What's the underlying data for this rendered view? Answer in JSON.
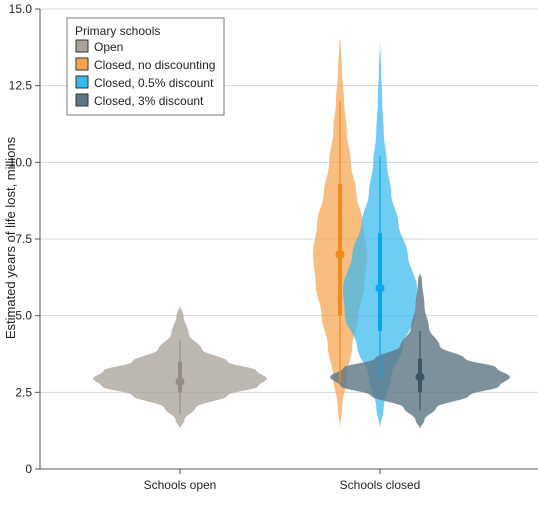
{
  "chart_data": {
    "type": "violin",
    "ylabel": "Estimated years of life lost, millions",
    "ylim": [
      0,
      15
    ],
    "yticks": [
      "0",
      "2.5",
      "5.0",
      "7.5",
      "10.0",
      "12.5",
      "15.0"
    ],
    "ytick_values": [
      0,
      2.5,
      5.0,
      7.5,
      10.0,
      12.5,
      15.0
    ],
    "categories": [
      "Schools open",
      "Schools closed"
    ],
    "grid": true,
    "legend": {
      "title": "Primary schools",
      "placement": "top-left",
      "entries": [
        "Open",
        "Closed, no discounting",
        "Closed, 0.5% discount",
        "Closed, 3% discount"
      ]
    },
    "colors": {
      "open": "#aaa39b",
      "no_discount": "#f7a44f",
      "half_pct": "#38b9ef",
      "three_pct": "#5c7685",
      "grid": "#d4d4d4",
      "axis": "#555555"
    },
    "series": [
      {
        "name": "Open",
        "category": "Schools open",
        "color_key": "open",
        "opacity": 0.78,
        "median": 2.85,
        "q1": 2.5,
        "q3": 3.5,
        "min": 1.8,
        "max": 4.2,
        "profile": [
          [
            1.3,
            0.0
          ],
          [
            1.6,
            0.05
          ],
          [
            2.0,
            0.18
          ],
          [
            2.4,
            0.55
          ],
          [
            2.7,
            0.9
          ],
          [
            2.95,
            1.0
          ],
          [
            3.2,
            0.88
          ],
          [
            3.5,
            0.55
          ],
          [
            3.9,
            0.25
          ],
          [
            4.4,
            0.1
          ],
          [
            5.0,
            0.04
          ],
          [
            5.35,
            0.0
          ]
        ]
      },
      {
        "name": "Closed, no discounting",
        "category": "Schools closed",
        "color_key": "no_discount",
        "opacity": 0.72,
        "median": 7.0,
        "q1": 5.0,
        "q3": 9.3,
        "min": 2.8,
        "max": 12.0,
        "profile": [
          [
            1.3,
            0.0
          ],
          [
            2.0,
            0.08
          ],
          [
            3.0,
            0.25
          ],
          [
            4.0,
            0.45
          ],
          [
            5.0,
            0.68
          ],
          [
            6.0,
            0.9
          ],
          [
            7.0,
            1.0
          ],
          [
            8.0,
            0.85
          ],
          [
            9.0,
            0.6
          ],
          [
            10.0,
            0.4
          ],
          [
            11.0,
            0.25
          ],
          [
            12.0,
            0.15
          ],
          [
            13.0,
            0.07
          ],
          [
            14.0,
            0.02
          ]
        ]
      },
      {
        "name": "Closed, 0.5% discount",
        "category": "Schools closed",
        "color_key": "half_pct",
        "opacity": 0.72,
        "median": 5.9,
        "q1": 4.5,
        "q3": 7.7,
        "min": 3.0,
        "max": 10.2,
        "profile": [
          [
            1.3,
            0.0
          ],
          [
            2.0,
            0.1
          ],
          [
            3.0,
            0.3
          ],
          [
            4.0,
            0.62
          ],
          [
            5.0,
            0.95
          ],
          [
            5.9,
            1.0
          ],
          [
            7.0,
            0.75
          ],
          [
            8.0,
            0.5
          ],
          [
            9.0,
            0.3
          ],
          [
            10.0,
            0.18
          ],
          [
            11.0,
            0.1
          ],
          [
            12.0,
            0.06
          ],
          [
            13.0,
            0.03
          ],
          [
            14.0,
            0.0
          ]
        ]
      },
      {
        "name": "Closed, 3% discount",
        "category": "Schools closed",
        "color_key": "three_pct",
        "opacity": 0.8,
        "median": 3.0,
        "q1": 2.5,
        "q3": 3.6,
        "min": 1.9,
        "max": 4.5,
        "profile": [
          [
            1.3,
            0.0
          ],
          [
            1.6,
            0.05
          ],
          [
            2.0,
            0.18
          ],
          [
            2.4,
            0.55
          ],
          [
            2.7,
            0.88
          ],
          [
            3.0,
            1.0
          ],
          [
            3.3,
            0.85
          ],
          [
            3.6,
            0.5
          ],
          [
            4.0,
            0.22
          ],
          [
            4.6,
            0.1
          ],
          [
            5.3,
            0.05
          ],
          [
            6.2,
            0.02
          ],
          [
            6.4,
            0.0
          ]
        ]
      }
    ]
  }
}
